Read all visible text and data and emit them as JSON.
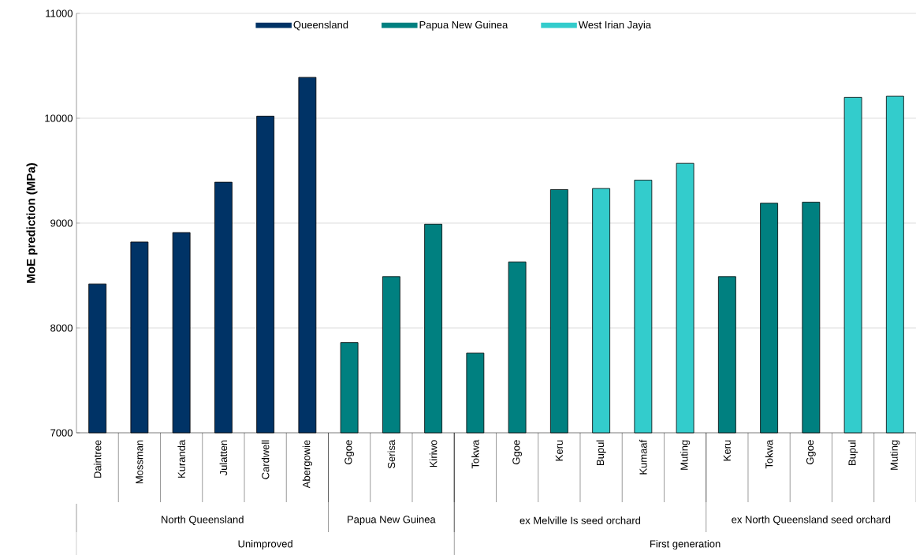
{
  "chart_data": {
    "type": "bar",
    "ylabel": "MoE prediction (MPa)",
    "categories": [
      "Daintree",
      "Mossman",
      "Kuranda",
      "Julatten",
      "Cardwell",
      "Abergowie",
      "Ggoe",
      "Serisa",
      "Kiriwo",
      "Tokwa",
      "Ggoe",
      "Keru",
      "Bupul",
      "Kumaaf",
      "Muting",
      "Keru",
      "Tokwa",
      "Ggoe",
      "Bupul",
      "Muting"
    ],
    "series": [
      {
        "name": "Queensland",
        "color": "#003366",
        "values": [
          8420,
          8820,
          8910,
          9390,
          10020,
          10390,
          null,
          null,
          null,
          null,
          null,
          null,
          null,
          null,
          null,
          null,
          null,
          null,
          null,
          null
        ]
      },
      {
        "name": "Papua New Guinea",
        "color": "#008080",
        "values": [
          null,
          null,
          null,
          null,
          null,
          null,
          7860,
          8490,
          8990,
          7760,
          8630,
          9320,
          null,
          null,
          null,
          8490,
          9190,
          9200,
          null,
          null
        ]
      },
      {
        "name": "West Irian Jayia",
        "color": "#33cccc",
        "values": [
          null,
          null,
          null,
          null,
          null,
          null,
          null,
          null,
          null,
          null,
          null,
          null,
          9330,
          9410,
          9570,
          null,
          null,
          null,
          10200,
          10210
        ]
      }
    ],
    "ylim": [
      7000,
      11000
    ],
    "yticks": [
      7000,
      8000,
      9000,
      10000,
      11000
    ],
    "grid": "y",
    "legend": "top",
    "annotations": [
      "North Queensland",
      "Papua New Guinea",
      "ex Melville Is seed orchard",
      "ex North Queensland seed orchard",
      "Unimproved",
      "First generation"
    ]
  }
}
